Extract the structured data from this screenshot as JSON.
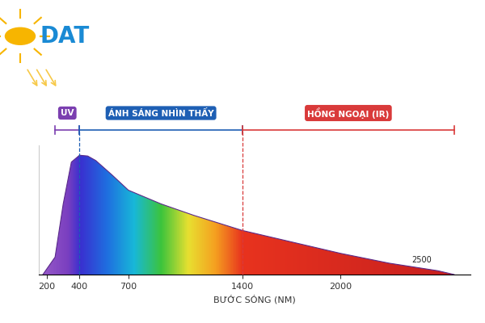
{
  "chart_data": {
    "type": "area",
    "x": [
      175,
      250,
      300,
      350,
      400,
      450,
      500,
      600,
      700,
      900,
      1100,
      1400,
      1700,
      2000,
      2300,
      2600,
      2700
    ],
    "values": [
      0,
      23,
      93,
      148,
      157,
      156,
      150,
      131,
      111,
      93,
      78,
      58,
      43,
      28,
      15,
      5,
      0
    ],
    "xlim": [
      150,
      2800
    ],
    "xticks": [
      200,
      400,
      700,
      1400,
      2000
    ],
    "ylim": [
      0,
      170
    ],
    "yticks": [],
    "x_label": "BƯỚC SÓNG (NM)",
    "tick_labels": "x",
    "annotations": [
      {
        "text": "2500",
        "x": 2500
      }
    ],
    "bands": [
      {
        "name": "UV",
        "start": 250,
        "end": 400,
        "color": "#7b3fb0"
      },
      {
        "name": "ÁNH SÁNG NHÌN THẤY",
        "start": 400,
        "end": 1400,
        "color": "#1e5fb4"
      },
      {
        "name": "HỒNG NGOẠI (IR)",
        "start": 1400,
        "end": 2700,
        "color": "#d93a3a"
      }
    ],
    "logo": "DAT"
  }
}
